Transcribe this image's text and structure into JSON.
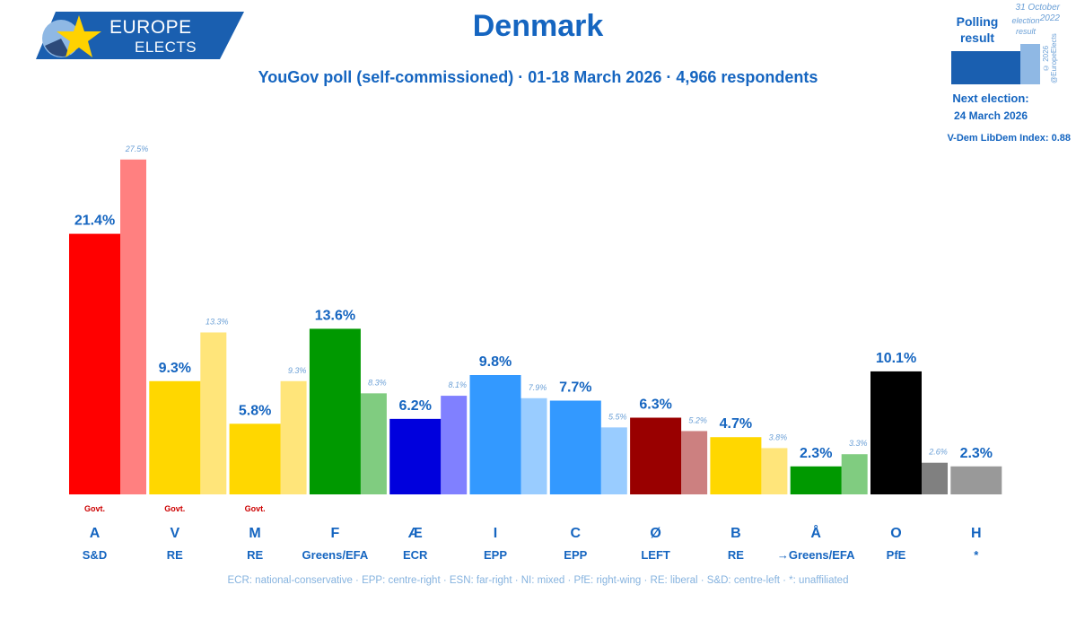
{
  "header": {
    "title": "Denmark",
    "subtitle": "YouGov poll (self-commissioned) · 01-18 March 2026 · 4,966 respondents"
  },
  "logo": {
    "line1": "EUROPE",
    "line2": "ELECTS"
  },
  "legend": {
    "election_date": "31 October 2022",
    "election_label": "election result",
    "polling_label": "Polling result",
    "copyright": "© 2026 @EuropeElects",
    "next_election_label": "Next election:",
    "next_election_date": "24 March 2026",
    "vdem": "V-Dem LibDem Index: 0.88",
    "colors": {
      "poll": "#1a5fb0",
      "election": "#8fb8e4"
    }
  },
  "footnote": "ECR: national-conservative · EPP: centre-right · ESN: far-right · NI: mixed · PfE: right-wing · RE: liberal · S&D: centre-left · *: unaffiliated",
  "chart_data": {
    "type": "bar",
    "categories": [
      "A",
      "V",
      "M",
      "F",
      "Æ",
      "I",
      "C",
      "Ø",
      "B",
      "Å",
      "O",
      "H"
    ],
    "groups": [
      "S&D",
      "RE",
      "RE",
      "Greens/EFA",
      "ECR",
      "EPP",
      "EPP",
      "LEFT",
      "RE",
      "→Greens/EFA",
      "PfE",
      "*"
    ],
    "govt": [
      true,
      true,
      true,
      false,
      false,
      false,
      false,
      false,
      false,
      false,
      false,
      false
    ],
    "govt_label": "Govt.",
    "series": [
      {
        "name": "Polling result",
        "values": [
          21.4,
          9.3,
          5.8,
          13.6,
          6.2,
          9.8,
          7.7,
          6.3,
          4.7,
          2.3,
          10.1,
          2.3
        ],
        "labels": [
          "21.4%",
          "9.3%",
          "5.8%",
          "13.6%",
          "6.2%",
          "9.8%",
          "7.7%",
          "6.3%",
          "4.7%",
          "2.3%",
          "10.1%",
          "2.3%"
        ]
      },
      {
        "name": "31 October 2022 election result",
        "values": [
          27.5,
          13.3,
          9.3,
          8.3,
          8.1,
          7.9,
          5.5,
          5.2,
          3.8,
          3.3,
          2.6,
          null
        ],
        "labels": [
          "27.5%",
          "13.3%",
          "9.3%",
          "8.3%",
          "8.1%",
          "7.9%",
          "5.5%",
          "5.2%",
          "3.8%",
          "3.3%",
          "2.6%",
          ""
        ]
      }
    ],
    "colors": [
      "#ff0000",
      "#ffd700",
      "#ffd700",
      "#009900",
      "#0000dd",
      "#3399ff",
      "#3399ff",
      "#990000",
      "#ffd700",
      "#009900",
      "#000000",
      "#999999"
    ],
    "prev_colors": [
      "#ff8080",
      "#ffe57a",
      "#ffe57a",
      "#80cc80",
      "#8080ff",
      "#99ccff",
      "#99ccff",
      "#cc8080",
      "#ffe57a",
      "#80cc80",
      "#808080",
      "#cccccc"
    ],
    "ylim": [
      0,
      28
    ],
    "xlabel": "",
    "ylabel": "",
    "grid": false
  }
}
